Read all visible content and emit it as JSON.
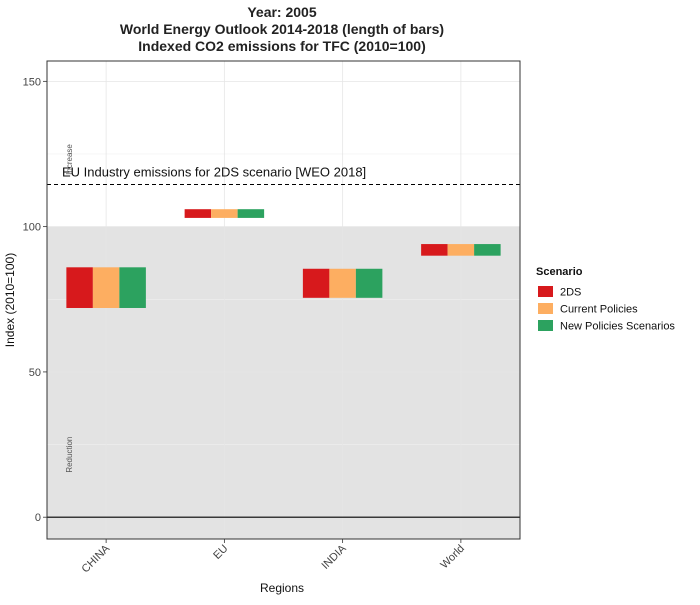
{
  "chart_data": {
    "type": "bar",
    "title_lines": [
      "Year: 2005",
      "World Energy Outlook 2014-2018 (length of bars)",
      "Indexed CO2 emissions for TFC (2010=100)"
    ],
    "xlabel": "Regions",
    "ylabel": "Index (2010=100)",
    "categories": [
      "CHINA",
      "EU",
      "INDIA",
      "World"
    ],
    "ylim": [
      -7.5,
      157
    ],
    "yticks": [
      0,
      50,
      100,
      150
    ],
    "grid": true,
    "legend": {
      "title": "Scenario",
      "position": "right",
      "entries": [
        "2DS",
        "Current Policies",
        "New Policies Scenarios"
      ]
    },
    "series": [
      {
        "name": "2DS",
        "color": "#d7191c",
        "ranges": [
          [
            72,
            86
          ],
          [
            103,
            106
          ],
          [
            75.5,
            85.5
          ],
          [
            90,
            94
          ]
        ]
      },
      {
        "name": "Current Policies",
        "color": "#fdae61",
        "ranges": [
          [
            72,
            86
          ],
          [
            103,
            106
          ],
          [
            75.5,
            85.5
          ],
          [
            90,
            94
          ]
        ]
      },
      {
        "name": "New Policies Scenarios",
        "color": "#2ca25f",
        "ranges": [
          [
            72,
            86
          ],
          [
            103,
            106
          ],
          [
            75.5,
            85.5
          ],
          [
            90,
            94
          ]
        ]
      }
    ],
    "annotations": {
      "reference_line": {
        "value": 114.5,
        "label": "EU Industry emissions for 2DS scenario [WEO 2018]"
      },
      "shaded_zone": {
        "from": -7.5,
        "to": 100,
        "color": "#e3e3e3"
      },
      "zero_line": 0,
      "increase_label": "Increase",
      "reduction_label": "Reduction"
    }
  }
}
